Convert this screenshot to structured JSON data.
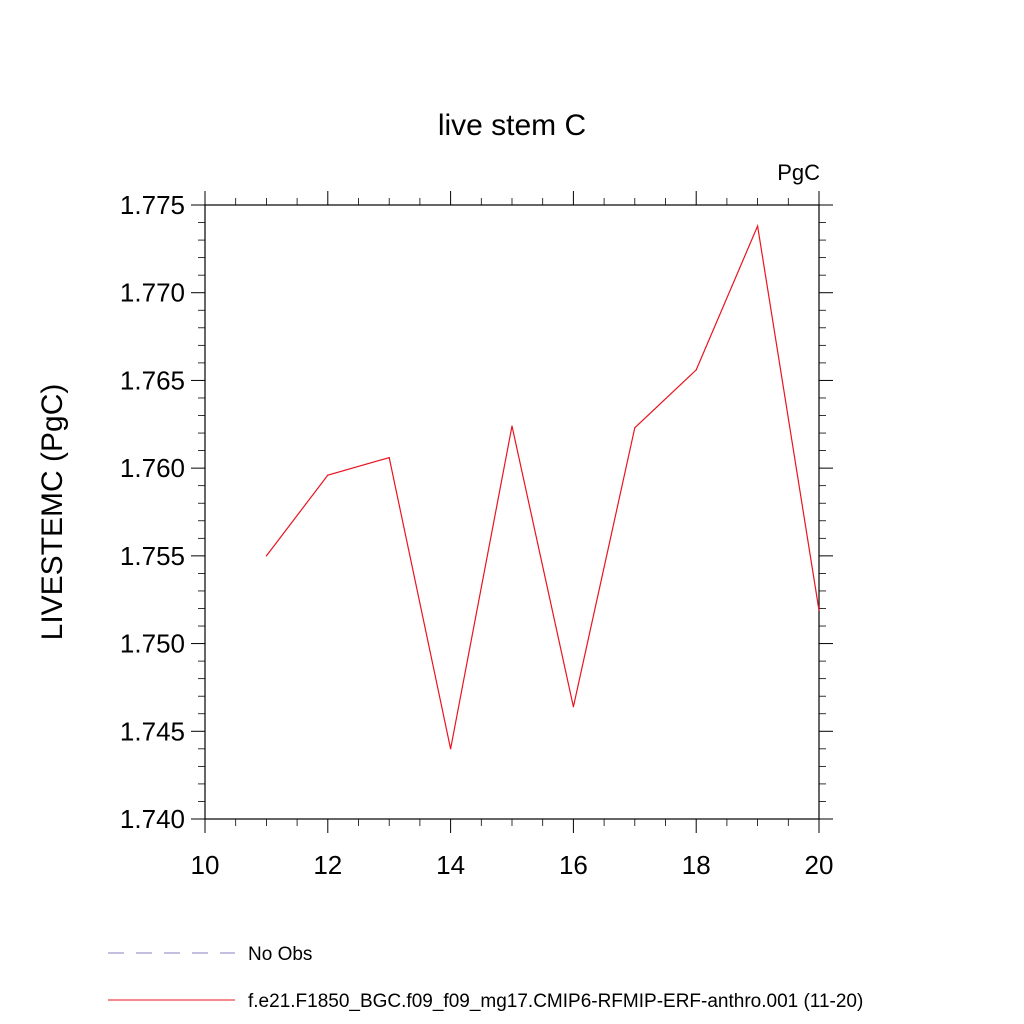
{
  "chart_data": {
    "type": "line",
    "title": "live stem C",
    "units": "PgC",
    "xlabel": "",
    "ylabel": "LIVESTEMC  (PgC)",
    "xlim": [
      10,
      20
    ],
    "ylim": [
      1.74,
      1.775
    ],
    "x_ticks": [
      "10",
      "12",
      "14",
      "16",
      "18",
      "20"
    ],
    "y_ticks": [
      "1.740",
      "1.745",
      "1.750",
      "1.755",
      "1.760",
      "1.765",
      "1.770",
      "1.775"
    ],
    "grid": false,
    "legend_position": "bottom-left",
    "series": [
      {
        "name": "f.e21.F1850_BGC.f09_f09_mg17.CMIP6-RFMIP-ERF-anthro.001 (11-20)",
        "color": "#e8141e",
        "style": "solid",
        "x": [
          11,
          12,
          13,
          14,
          15,
          16,
          17,
          18,
          19,
          20
        ],
        "y": [
          1.755,
          1.7596,
          1.7606,
          1.744,
          1.7624,
          1.7464,
          1.7623,
          1.7656,
          1.7738,
          1.7519
        ]
      }
    ],
    "legend": [
      {
        "label": "No Obs",
        "color": "#8a7fc2",
        "style": "dashed"
      },
      {
        "label": "f.e21.F1850_BGC.f09_f09_mg17.CMIP6-RFMIP-ERF-anthro.001 (11-20)",
        "color": "#e8141e",
        "style": "solid"
      }
    ]
  }
}
